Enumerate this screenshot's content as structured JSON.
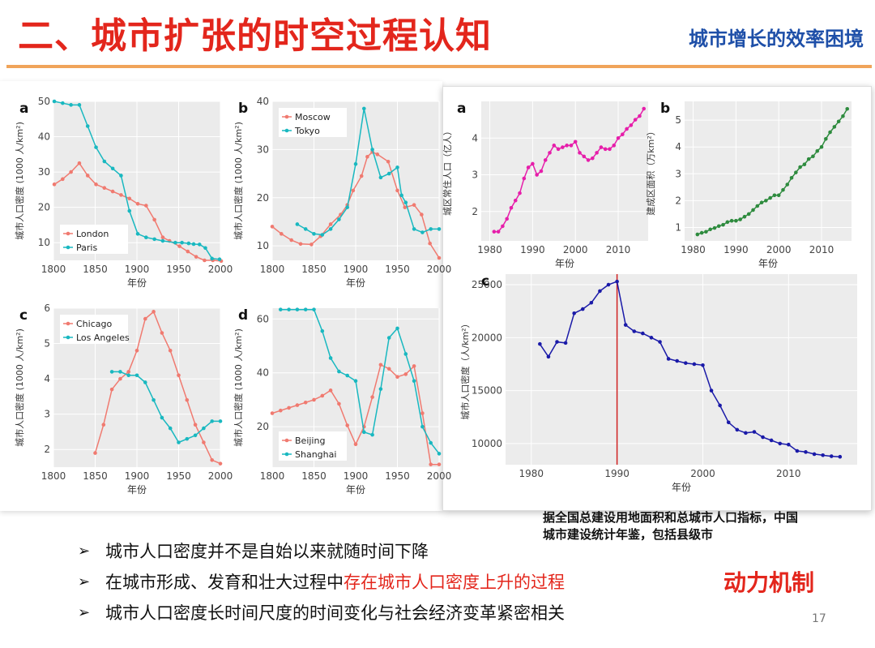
{
  "header": {
    "title": "二、城市扩张的时空过程认知",
    "subtitle": "城市增长的效率困境"
  },
  "left_labels": {
    "ylabel": "城市人口密度 (1000 人/km²)",
    "xlabel": "年份"
  },
  "right_labels": {
    "a_ylabel": "城区常住人口（亿人）",
    "b_ylabel": "建成区面积（万km²）",
    "c_ylabel": "城市人口密度（人/km²）",
    "xlabel": "年份"
  },
  "note": {
    "line1": "据全国总建设用地面积和总城市人口指标，中国",
    "line2": "城市建设统计年鉴，包括县级市"
  },
  "bullets": {
    "b1": "城市人口密度并不是自始以来就随时间下降",
    "b2_plain": "在城市形成、发育和壮大过程中",
    "b2_red": "存在城市人口密度上升的过程",
    "b3": "城市人口密度长时间尺度的时间变化与社会经济变革紧密相关",
    "marker": "➢"
  },
  "mechanism_label": "动力机制",
  "page_number": "17",
  "colors": {
    "red_series": "#f07a70",
    "teal_series": "#19b8c0",
    "magenta": "#e61eaa",
    "green": "#2e8b3e",
    "blue": "#1a1aa8",
    "title_red": "#e3261c",
    "subtitle_blue": "#1e4fa8"
  },
  "chart_data": [
    {
      "panel": "a",
      "type": "line",
      "xlim": [
        1800,
        2000
      ],
      "ylim": [
        5,
        50
      ],
      "xticks": [
        1800,
        1850,
        1900,
        1950,
        2000
      ],
      "yticks": [
        10,
        20,
        30,
        40,
        50
      ],
      "legend": "bottom-left",
      "grid": true,
      "series": [
        {
          "name": "London",
          "color": "red",
          "x": [
            1801,
            1811,
            1821,
            1831,
            1841,
            1851,
            1861,
            1871,
            1881,
            1891,
            1901,
            1911,
            1921,
            1931,
            1939,
            1951,
            1961,
            1971,
            1981,
            1991,
            2001
          ],
          "y": [
            26.5,
            28,
            30,
            32.5,
            29,
            26.5,
            25.5,
            24.5,
            23.5,
            22.5,
            21,
            20.5,
            16.5,
            11.5,
            10.5,
            9,
            7.5,
            6,
            5,
            5,
            4.8
          ]
        },
        {
          "name": "Paris",
          "color": "teal",
          "x": [
            1801,
            1811,
            1821,
            1831,
            1841,
            1851,
            1861,
            1871,
            1881,
            1891,
            1901,
            1911,
            1921,
            1931,
            1946,
            1954,
            1962,
            1968,
            1975,
            1982,
            1990,
            1999
          ],
          "y": [
            50,
            49.5,
            49,
            49,
            43,
            37,
            33,
            31,
            29,
            19,
            12.5,
            11.5,
            11,
            10.5,
            10,
            10,
            9.8,
            9.6,
            9.5,
            8.5,
            5.5,
            5.3
          ]
        }
      ]
    },
    {
      "panel": "b",
      "type": "line",
      "xlim": [
        1800,
        2000
      ],
      "ylim": [
        7,
        40
      ],
      "xticks": [
        1800,
        1850,
        1900,
        1950,
        2000
      ],
      "yticks": [
        10,
        20,
        30,
        40
      ],
      "legend": "top-left",
      "grid": true,
      "series": [
        {
          "name": "Moscow",
          "color": "red",
          "x": [
            1800,
            1811,
            1823,
            1834,
            1847,
            1858,
            1870,
            1882,
            1890,
            1897,
            1907,
            1914,
            1920,
            1926,
            1939,
            1950,
            1959,
            1970,
            1979,
            1989,
            2000
          ],
          "y": [
            14,
            12.5,
            11.2,
            10.4,
            10.3,
            12,
            14.5,
            16.5,
            18.5,
            21.5,
            24.5,
            28.5,
            29.5,
            29,
            27.5,
            21.5,
            18,
            18.5,
            16.5,
            10.5,
            7.5
          ]
        },
        {
          "name": "Tokyo",
          "color": "teal",
          "x": [
            1830,
            1840,
            1850,
            1860,
            1870,
            1880,
            1890,
            1900,
            1910,
            1920,
            1930,
            1940,
            1950,
            1955,
            1960,
            1970,
            1980,
            1990,
            2000
          ],
          "y": [
            14.5,
            13.5,
            12.5,
            12.3,
            13.5,
            15.5,
            18,
            27,
            38.5,
            30,
            24.2,
            25,
            26.3,
            20.5,
            19,
            13.5,
            12.8,
            13.5,
            13.5
          ]
        }
      ]
    },
    {
      "panel": "c",
      "type": "line",
      "xlim": [
        1800,
        2000
      ],
      "ylim": [
        1.5,
        6
      ],
      "xticks": [
        1800,
        1850,
        1900,
        1950,
        2000
      ],
      "yticks": [
        2,
        3,
        4,
        5,
        6
      ],
      "legend": "top-left",
      "grid": true,
      "series": [
        {
          "name": "Chicago",
          "color": "red",
          "x": [
            1850,
            1860,
            1870,
            1880,
            1890,
            1900,
            1910,
            1920,
            1930,
            1940,
            1950,
            1960,
            1970,
            1980,
            1990,
            2000
          ],
          "y": [
            1.9,
            2.7,
            3.7,
            4,
            4.2,
            4.8,
            5.7,
            5.9,
            5.3,
            4.8,
            4.1,
            3.4,
            2.7,
            2.2,
            1.7,
            1.6
          ]
        },
        {
          "name": "Los Angeles",
          "color": "teal",
          "x": [
            1870,
            1880,
            1890,
            1900,
            1910,
            1920,
            1930,
            1940,
            1950,
            1960,
            1970,
            1980,
            1990,
            2000
          ],
          "y": [
            4.2,
            4.2,
            4.1,
            4.1,
            3.9,
            3.4,
            2.9,
            2.6,
            2.2,
            2.3,
            2.4,
            2.6,
            2.8,
            2.8
          ]
        }
      ]
    },
    {
      "panel": "d",
      "type": "line",
      "xlim": [
        1800,
        2000
      ],
      "ylim": [
        5,
        64
      ],
      "xticks": [
        1800,
        1850,
        1900,
        1950,
        2000
      ],
      "yticks": [
        20,
        40,
        60
      ],
      "legend": "bottom-left",
      "grid": true,
      "series": [
        {
          "name": "Beijing",
          "color": "red",
          "x": [
            1800,
            1810,
            1820,
            1830,
            1840,
            1850,
            1860,
            1870,
            1880,
            1890,
            1900,
            1910,
            1920,
            1930,
            1940,
            1950,
            1960,
            1970,
            1980,
            1990,
            2000
          ],
          "y": [
            25,
            26,
            27,
            28,
            29,
            30,
            31.5,
            33.5,
            28.5,
            20.5,
            13.5,
            20,
            31,
            43,
            41.5,
            38.5,
            39.5,
            42.5,
            25,
            6,
            6
          ]
        },
        {
          "name": "Shanghai",
          "color": "teal",
          "x": [
            1810,
            1820,
            1830,
            1840,
            1850,
            1860,
            1870,
            1880,
            1890,
            1900,
            1910,
            1920,
            1930,
            1940,
            1950,
            1960,
            1970,
            1980,
            1990,
            2000
          ],
          "y": [
            63.5,
            63.5,
            63.5,
            63.5,
            63.5,
            55.5,
            45.5,
            40.5,
            39,
            37,
            18,
            17,
            34,
            53,
            56.5,
            47,
            37,
            20,
            14,
            10
          ]
        }
      ]
    },
    {
      "panel": "a",
      "type": "line",
      "color": "magenta",
      "xlim": [
        1978,
        2017
      ],
      "ylim": [
        1.2,
        5
      ],
      "xticks": [
        1980,
        1990,
        2000,
        2010
      ],
      "yticks": [
        2,
        3,
        4
      ],
      "x": [
        1981,
        1982,
        1983,
        1984,
        1985,
        1986,
        1987,
        1988,
        1989,
        1990,
        1991,
        1992,
        1993,
        1994,
        1995,
        1996,
        1997,
        1998,
        1999,
        2000,
        2001,
        2002,
        2003,
        2004,
        2005,
        2006,
        2007,
        2008,
        2009,
        2010,
        2011,
        2012,
        2013,
        2014,
        2015,
        2016
      ],
      "y": [
        1.45,
        1.45,
        1.6,
        1.8,
        2.1,
        2.3,
        2.5,
        2.9,
        3.2,
        3.3,
        3.0,
        3.1,
        3.4,
        3.6,
        3.8,
        3.7,
        3.75,
        3.8,
        3.8,
        3.9,
        3.6,
        3.5,
        3.4,
        3.45,
        3.6,
        3.75,
        3.7,
        3.7,
        3.8,
        4.0,
        4.1,
        4.25,
        4.35,
        4.5,
        4.6,
        4.8
      ]
    },
    {
      "panel": "b",
      "type": "line",
      "color": "green",
      "xlim": [
        1978,
        2017
      ],
      "ylim": [
        0.5,
        5.7
      ],
      "xticks": [
        1980,
        1990,
        2000,
        2010
      ],
      "yticks": [
        1,
        2,
        3,
        4,
        5
      ],
      "x": [
        1981,
        1982,
        1983,
        1984,
        1985,
        1986,
        1987,
        1988,
        1989,
        1990,
        1991,
        1992,
        1993,
        1994,
        1995,
        1996,
        1997,
        1998,
        1999,
        2000,
        2001,
        2002,
        2003,
        2004,
        2005,
        2006,
        2007,
        2008,
        2009,
        2010,
        2011,
        2012,
        2013,
        2014,
        2015,
        2016
      ],
      "y": [
        0.74,
        0.8,
        0.84,
        0.93,
        0.98,
        1.05,
        1.1,
        1.2,
        1.25,
        1.25,
        1.3,
        1.4,
        1.5,
        1.65,
        1.8,
        1.93,
        2.0,
        2.1,
        2.2,
        2.2,
        2.4,
        2.6,
        2.85,
        3.05,
        3.25,
        3.35,
        3.55,
        3.65,
        3.85,
        4.0,
        4.3,
        4.55,
        4.75,
        4.95,
        5.15,
        5.42
      ]
    },
    {
      "panel": "c",
      "type": "line",
      "color": "blue",
      "xlim": [
        1977,
        2018
      ],
      "ylim": [
        8000,
        26000
      ],
      "xticks": [
        1980,
        1990,
        2000,
        2010
      ],
      "yticks": [
        10000,
        15000,
        20000,
        25000
      ],
      "marker_line_x": 1990,
      "x": [
        1981,
        1982,
        1983,
        1984,
        1985,
        1986,
        1987,
        1988,
        1989,
        1990,
        1991,
        1992,
        1993,
        1994,
        1995,
        1996,
        1997,
        1998,
        1999,
        2000,
        2001,
        2002,
        2003,
        2004,
        2005,
        2006,
        2007,
        2008,
        2009,
        2010,
        2011,
        2012,
        2013,
        2014,
        2015,
        2016
      ],
      "y": [
        19400,
        18200,
        19600,
        19500,
        22300,
        22700,
        23300,
        24400,
        25000,
        25300,
        21200,
        20600,
        20400,
        20000,
        19600,
        18000,
        17800,
        17600,
        17500,
        17400,
        15000,
        13600,
        12000,
        11300,
        11000,
        11100,
        10600,
        10300,
        10000,
        9900,
        9300,
        9200,
        9000,
        8900,
        8800,
        8750
      ]
    }
  ]
}
